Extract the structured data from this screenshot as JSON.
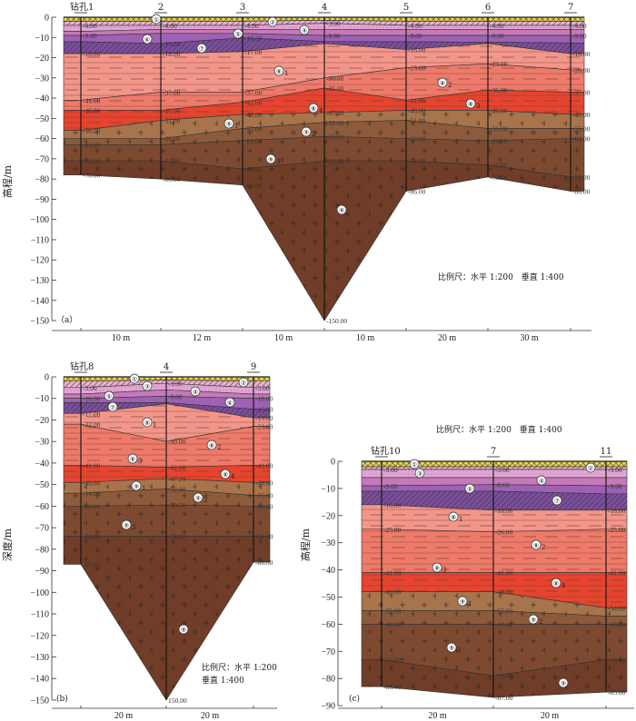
{
  "layer_ids": [
    "1",
    "3",
    "4",
    "5",
    "6",
    "7",
    "8-1",
    "8-2",
    "8-3",
    "9-1",
    "9-2",
    "9-3",
    "9-4"
  ],
  "colors": {
    "1": "#e9d84c",
    "3": "#eab0cf",
    "4": "#e3a6d6",
    "5": "#c679b8",
    "6": "#9d62b3",
    "7": "#7c4d9c",
    "8-1": "#f3968a",
    "8-2": "#ee7a6a",
    "8-3": "#e6442f",
    "9-1": "#a8744c",
    "9-2": "#8d5b3b",
    "9-3": "#7d4a31",
    "9-4": "#6f3d28"
  },
  "panels": [
    {
      "tag": "（a）",
      "ylabel": "高程/m",
      "yticks": [
        0,
        -10,
        -20,
        -30,
        -40,
        -50,
        -60,
        -70,
        -80,
        -90,
        -100,
        -110,
        -120,
        -130,
        -140,
        -150
      ],
      "spacings": [
        "10 m",
        "12 m",
        "10 m",
        "10 m",
        "20 m",
        "30 m"
      ],
      "scale_lines": [
        "比例尺：水平 1:200　垂直 1:400"
      ],
      "bottom_label": "-150.00",
      "circle_labels": [
        "①",
        "②",
        "④",
        "⑤",
        "⑥",
        "⑦",
        "⑧1",
        "⑧2",
        "⑧3",
        "⑧4",
        "⑨1",
        "⑨2",
        "⑨3",
        "⑨"
      ],
      "boreholes": [
        {
          "name": "钻孔1",
          "depths": [
            -2,
            -4,
            -7,
            -9,
            -12.1,
            -18,
            -41,
            -46,
            -56,
            -60,
            -63,
            -71,
            -78
          ]
        },
        {
          "name": "2",
          "depths": [
            -2,
            -4,
            -6,
            -8,
            -13,
            -18,
            -37,
            -46,
            -51,
            -60,
            -63,
            -71,
            -80
          ]
        },
        {
          "name": "3",
          "depths": [
            -2,
            -4,
            -6,
            -8,
            -10.2,
            -17,
            -37,
            -42,
            -48,
            -55,
            -61,
            -75,
            -83
          ]
        },
        {
          "name": "4",
          "depths": [
            -1.5,
            -3,
            -6,
            -9,
            -12,
            -13,
            -30,
            -35,
            -47.2,
            -52,
            -59,
            -71,
            -150
          ]
        },
        {
          "name": "5",
          "depths": [
            -2,
            -4,
            -6,
            -9,
            -12.1,
            -16,
            -25,
            -41,
            -46,
            -51,
            -60,
            -71,
            -86
          ]
        },
        {
          "name": "6",
          "depths": [
            -2,
            -4,
            -6,
            -9,
            -12.3,
            -13,
            -23,
            -36,
            -46,
            -55,
            -61,
            -73,
            -79
          ]
        },
        {
          "name": "7",
          "depths": [
            -2,
            -4,
            -6,
            -9,
            -12.7,
            -18,
            -26,
            -37,
            -48,
            -55,
            -60,
            -79,
            -86
          ]
        }
      ]
    },
    {
      "tag": "(b)",
      "ylabel": "深度/m",
      "yticks": [
        0,
        -10,
        -20,
        -30,
        -40,
        -50,
        -60,
        -70,
        -80,
        -90,
        -100,
        -110,
        -120,
        -130,
        -140,
        -150
      ],
      "spacings": [
        "20 m",
        "20 m"
      ],
      "scale_lines": [
        "比例尺：水平 1:200",
        "垂直 1:400"
      ],
      "bottom_label": "150.00",
      "circle_labels": [
        "①",
        "②",
        "③",
        "④",
        "⑤",
        "⑥",
        "⑦",
        "⑧1",
        "⑧2",
        "⑧3",
        "⑧4",
        "⑨1",
        "⑨2",
        "⑨3",
        "⑨"
      ],
      "boreholes": [
        {
          "name": "钻孔8",
          "depths": [
            -2,
            -5,
            -8,
            -10,
            -12,
            -17,
            -22,
            -41,
            -49,
            -54,
            -60,
            -74,
            -87
          ]
        },
        {
          "name": "4",
          "depths": [
            -1.5,
            -3,
            -6,
            -9,
            -12,
            -12.5,
            -30,
            -42,
            -47.2,
            -52,
            -59.5,
            -74,
            -150
          ]
        },
        {
          "name": "9",
          "depths": [
            -2,
            -5,
            -8,
            -10,
            -15,
            -19,
            -23,
            -41,
            -49,
            -55,
            -60,
            -74,
            -86
          ]
        }
      ]
    },
    {
      "tag": "(c)",
      "ylabel": "高程/m",
      "yticks": [
        0,
        -10,
        -20,
        -30,
        -40,
        -50,
        -60,
        -70,
        -80,
        -90
      ],
      "spacings": [
        "20 m",
        "20 m"
      ],
      "scale_lines": [
        "比例尺：水平 1:200　垂直 1:400"
      ],
      "bottom_label": "",
      "circle_labels": [
        "①",
        "②",
        "③",
        "④",
        "⑤",
        "⑦",
        "⑧1",
        "⑧2",
        "⑧3",
        "⑧4",
        "⑨1",
        "⑨2",
        "⑨3",
        "⑨"
      ],
      "boreholes": [
        {
          "name": "钻孔10",
          "depths": [
            -2,
            -3,
            -6,
            -9,
            -11,
            -16,
            -25,
            -41,
            -48,
            -55,
            -60,
            -73,
            -83
          ]
        },
        {
          "name": "7",
          "depths": [
            -2,
            -3,
            -6,
            -8.6,
            -11,
            -18,
            -26,
            -41,
            -48,
            -55,
            -60,
            -79,
            -87
          ]
        },
        {
          "name": "11",
          "depths": [
            -2,
            -3,
            -6,
            -9,
            -12,
            -18,
            -25,
            -41,
            -54,
            -57,
            -60,
            -73,
            -85
          ]
        }
      ]
    }
  ]
}
